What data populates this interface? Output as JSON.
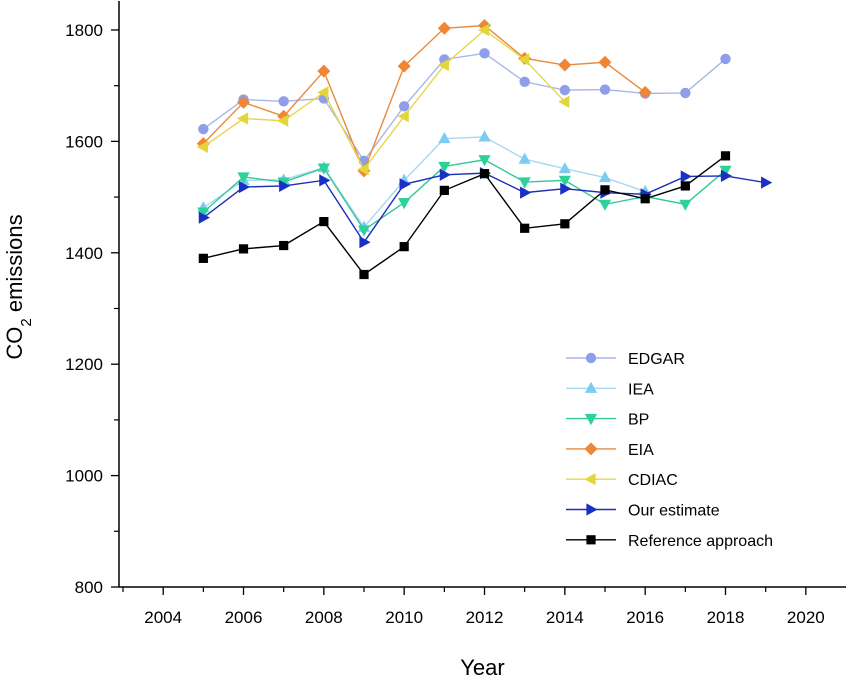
{
  "chart_data": {
    "type": "line",
    "title": "",
    "xlabel": "Year",
    "ylabel_main": "CO",
    "ylabel_sub": "2",
    "ylabel_rest": " emissions",
    "xlim": [
      2002.9,
      2021
    ],
    "ylim": [
      800,
      1852
    ],
    "xticks": [
      2004,
      2006,
      2008,
      2010,
      2012,
      2014,
      2016,
      2018,
      2020
    ],
    "yticks": [
      800,
      1000,
      1200,
      1400,
      1600,
      1800
    ],
    "grid": false,
    "legend_position": "bottom-right",
    "series": [
      {
        "name": "EDGAR",
        "color": "#a9b6e9",
        "marker_color": "#8e9ee8",
        "marker": "circle",
        "x": [
          2005,
          2006,
          2007,
          2008,
          2009,
          2010,
          2011,
          2012,
          2013,
          2014,
          2015,
          2016,
          2017,
          2018
        ],
        "values": [
          1622,
          1675,
          1672,
          1677,
          1565,
          1663,
          1747,
          1758,
          1707,
          1692,
          1693,
          1686,
          1687,
          1748
        ]
      },
      {
        "name": "IEA",
        "color": "#a8d8f2",
        "marker_color": "#7ccbf2",
        "marker": "triangle-up",
        "x": [
          2005,
          2006,
          2007,
          2008,
          2009,
          2010,
          2011,
          2012,
          2013,
          2014,
          2015,
          2016
        ],
        "values": [
          1481,
          1530,
          1531,
          1553,
          1446,
          1530,
          1605,
          1608,
          1568,
          1551,
          1535,
          1510
        ]
      },
      {
        "name": "BP",
        "color": "#36c89c",
        "marker_color": "#2dd29b",
        "marker": "triangle-down",
        "x": [
          2005,
          2006,
          2007,
          2008,
          2009,
          2010,
          2011,
          2012,
          2013,
          2014,
          2015,
          2016,
          2017,
          2018
        ],
        "values": [
          1473,
          1536,
          1527,
          1552,
          1441,
          1490,
          1555,
          1567,
          1527,
          1530,
          1487,
          1501,
          1487,
          1548
        ]
      },
      {
        "name": "EIA",
        "color": "#e88b3e",
        "marker_color": "#ef8636",
        "marker": "diamond",
        "x": [
          2005,
          2006,
          2007,
          2008,
          2009,
          2010,
          2011,
          2012,
          2013,
          2014,
          2015,
          2016
        ],
        "values": [
          1596,
          1670,
          1645,
          1726,
          1547,
          1735,
          1803,
          1808,
          1749,
          1737,
          1742,
          1688
        ]
      },
      {
        "name": "CDIAC",
        "color": "#e6d64c",
        "marker_color": "#e3d63b",
        "marker": "triangle-left",
        "x": [
          2005,
          2006,
          2007,
          2008,
          2009,
          2010,
          2011,
          2012,
          2013,
          2014
        ],
        "values": [
          1590,
          1641,
          1637,
          1688,
          1550,
          1645,
          1737,
          1800,
          1747,
          1671
        ]
      },
      {
        "name": "Our estimate",
        "color": "#1a2fb5",
        "marker_color": "#1a2fc4",
        "marker": "triangle-right",
        "x": [
          2005,
          2006,
          2007,
          2008,
          2009,
          2010,
          2011,
          2012,
          2013,
          2014,
          2015,
          2016,
          2017,
          2018,
          2019
        ],
        "values": [
          1463,
          1518,
          1520,
          1530,
          1419,
          1523,
          1540,
          1543,
          1508,
          1515,
          1508,
          1505,
          1537,
          1538,
          1526
        ]
      },
      {
        "name": "Reference approach",
        "color": "#000000",
        "marker_color": "#000000",
        "marker": "square",
        "x": [
          2005,
          2006,
          2007,
          2008,
          2009,
          2010,
          2011,
          2012,
          2013,
          2014,
          2015,
          2016,
          2017,
          2018
        ],
        "values": [
          1390,
          1407,
          1413,
          1456,
          1361,
          1411,
          1512,
          1542,
          1444,
          1452,
          1513,
          1497,
          1520,
          1574
        ]
      }
    ]
  }
}
